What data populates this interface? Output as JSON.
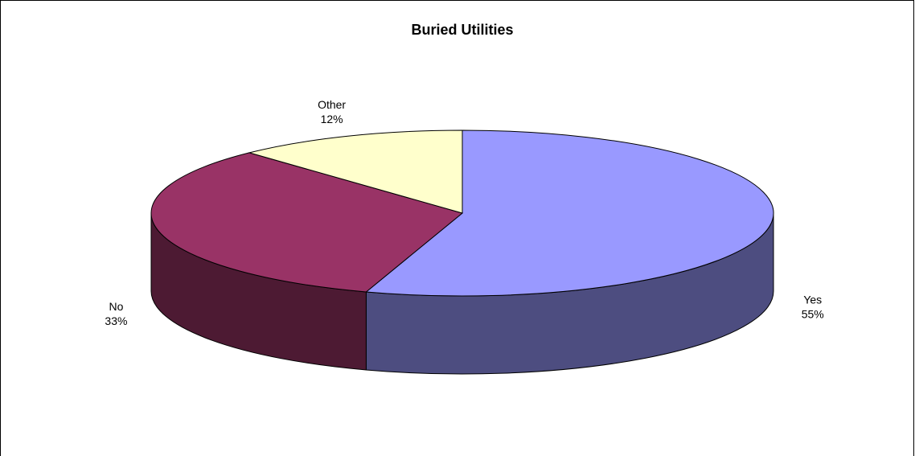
{
  "chart_data": {
    "type": "pie",
    "title": "Buried Utilities",
    "categories": [
      "Yes",
      "No",
      "Other"
    ],
    "values": [
      55,
      33,
      12
    ],
    "value_labels": [
      "55%",
      "33%",
      "12%"
    ],
    "colors": [
      "#9999ff",
      "#993366",
      "#ffffcc"
    ]
  }
}
